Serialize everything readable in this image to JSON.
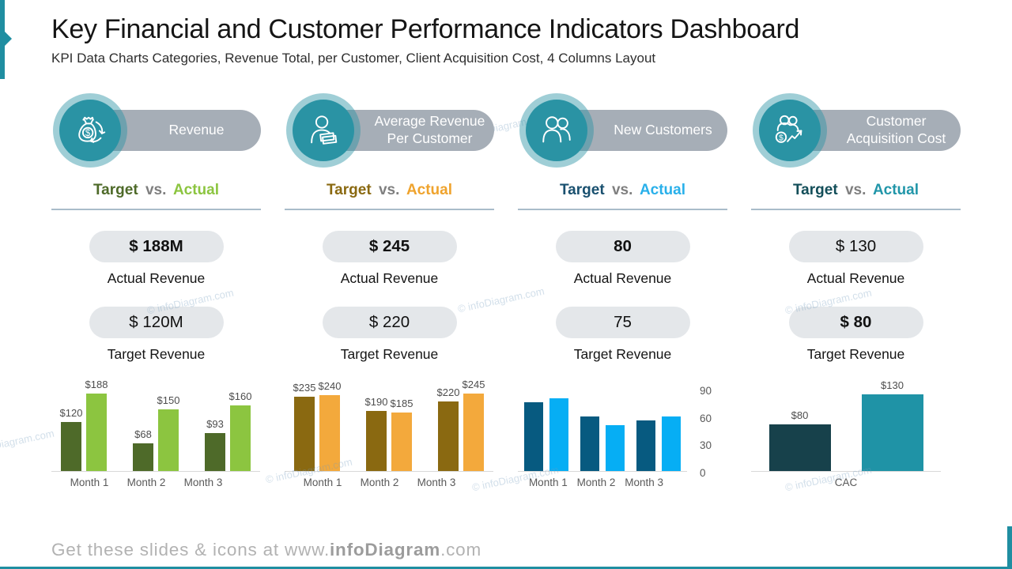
{
  "slide": {
    "title": "Key Financial and Customer Performance Indicators Dashboard",
    "subtitle": "KPI Data Charts Categories, Revenue Total, per Customer, Client Acquisition Cost, 4 Columns Layout",
    "footer": {
      "prefix": "Get these slides & icons at www.",
      "bold": "infoDiagram",
      "suffix": ".com"
    },
    "watermark": "© infoDiagram.com",
    "accent_color": "#1f8ea1"
  },
  "columns": [
    {
      "label": "Revenue",
      "icon": "money-bag-cycle-icon",
      "tva": {
        "target": "Target",
        "vs": "vs.",
        "actual": "Actual",
        "target_color": "#4e6a29",
        "actual_color": "#8cc540"
      },
      "actual": {
        "value": "$ 188M",
        "label": "Actual Revenue",
        "bold": true
      },
      "target": {
        "value": "$ 120M",
        "label": "Target Revenue",
        "bold": false
      }
    },
    {
      "label": "Average Revenue\nPer Customer",
      "icon": "customer-revenue-icon",
      "tva": {
        "target": "Target",
        "vs": "vs.",
        "actual": "Actual",
        "target_color": "#8a6911",
        "actual_color": "#efa32d"
      },
      "actual": {
        "value": "$ 245",
        "label": "Actual Revenue",
        "bold": true
      },
      "target": {
        "value": "$ 220",
        "label": "Target Revenue",
        "bold": false
      }
    },
    {
      "label": "New Customers",
      "icon": "new-customers-icon",
      "tva": {
        "target": "Target",
        "vs": "vs.",
        "actual": "Actual",
        "target_color": "#19506f",
        "actual_color": "#29b0ea"
      },
      "actual": {
        "value": "80",
        "label": "Actual Revenue",
        "bold": true
      },
      "target": {
        "value": "75",
        "label": "Target Revenue",
        "bold": false
      }
    },
    {
      "label": "Customer\nAcquisition Cost",
      "icon": "customer-acquisition-cost-icon",
      "tva": {
        "target": "Target",
        "vs": "vs.",
        "actual": "Actual",
        "target_color": "#134e59",
        "actual_color": "#2196a9"
      },
      "actual": {
        "value": "$ 130",
        "label": "Actual Revenue",
        "bold": false
      },
      "target": {
        "value": "$ 80",
        "label": "Target Revenue",
        "bold": true
      }
    }
  ],
  "chart_data": [
    {
      "type": "bar",
      "title": "Revenue — Target vs. Actual by month",
      "categories": [
        "Month 1",
        "Month 2",
        "Month 3"
      ],
      "series": [
        {
          "name": "Target",
          "values": [
            120,
            68,
            93
          ],
          "labels": [
            "$120",
            "$68",
            "$93"
          ],
          "color": "#4e6a29"
        },
        {
          "name": "Actual",
          "values": [
            188,
            150,
            160
          ],
          "labels": [
            "$188",
            "$150",
            "$160"
          ],
          "color": "#8cc540"
        }
      ],
      "ylim": [
        0,
        200
      ],
      "data_labels": true,
      "axis_ticks": null,
      "grid": false,
      "legend": false
    },
    {
      "type": "bar",
      "title": "Average Revenue Per Customer — Target vs. Actual by month",
      "categories": [
        "Month 1",
        "Month 2",
        "Month 3"
      ],
      "series": [
        {
          "name": "Target",
          "values": [
            235,
            190,
            220
          ],
          "labels": [
            "$235",
            "$190",
            "$220"
          ],
          "color": "#8a6911"
        },
        {
          "name": "Actual",
          "values": [
            240,
            185,
            245
          ],
          "labels": [
            "$240",
            "$185",
            "$245"
          ],
          "color": "#f3a93c"
        }
      ],
      "ylim": [
        0,
        260
      ],
      "data_labels": true,
      "axis_ticks": null,
      "grid": false,
      "legend": false
    },
    {
      "type": "bar",
      "title": "New Customers — Target vs. Actual by month",
      "categories": [
        "Month 1",
        "Month 2",
        "Month 3"
      ],
      "series": [
        {
          "name": "Target",
          "values": [
            75,
            60,
            55
          ],
          "color": "#075a80"
        },
        {
          "name": "Actual",
          "values": [
            80,
            50,
            60
          ],
          "color": "#06aef4"
        }
      ],
      "ylim": [
        0,
        90
      ],
      "data_labels": false,
      "axis_ticks": [
        90,
        60,
        30,
        0
      ],
      "grid": false,
      "legend": false
    },
    {
      "type": "bar",
      "title": "Customer Acquisition Cost — Target vs. Actual",
      "categories": [
        "CAC"
      ],
      "series": [
        {
          "name": "Target",
          "values": [
            80
          ],
          "labels": [
            "$80"
          ],
          "color": "#17414b"
        },
        {
          "name": "Actual",
          "values": [
            130
          ],
          "labels": [
            "$130"
          ],
          "color": "#1f93a6"
        }
      ],
      "ylim": [
        0,
        140
      ],
      "data_labels": true,
      "axis_ticks": null,
      "grid": false,
      "legend": false
    }
  ]
}
